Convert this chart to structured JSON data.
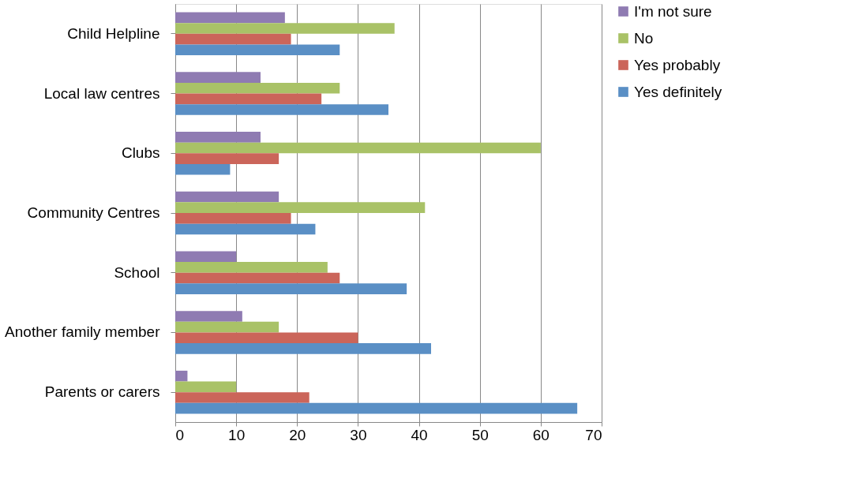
{
  "chart_data": {
    "type": "bar",
    "orientation": "horizontal",
    "categories": [
      "Child Helpline",
      "Local law centres",
      "Clubs",
      "Community Centres",
      "School",
      "Another family member",
      "Parents or carers"
    ],
    "series": [
      {
        "name": "I'm not sure",
        "color": "#8f7bb2",
        "values": [
          18,
          14,
          14,
          17,
          10,
          11,
          2
        ]
      },
      {
        "name": "No",
        "color": "#a9c267",
        "values": [
          36,
          27,
          60,
          41,
          25,
          17,
          10
        ]
      },
      {
        "name": "Yes probably",
        "color": "#cb655a",
        "values": [
          19,
          24,
          17,
          19,
          27,
          30,
          22
        ]
      },
      {
        "name": "Yes definitely",
        "color": "#5a8fc5",
        "values": [
          27,
          35,
          9,
          23,
          38,
          42,
          66
        ]
      }
    ],
    "xlim": [
      0,
      70
    ],
    "xticks": [
      0,
      10,
      20,
      30,
      40,
      50,
      60,
      70
    ],
    "grid": "x",
    "legend": "right"
  }
}
